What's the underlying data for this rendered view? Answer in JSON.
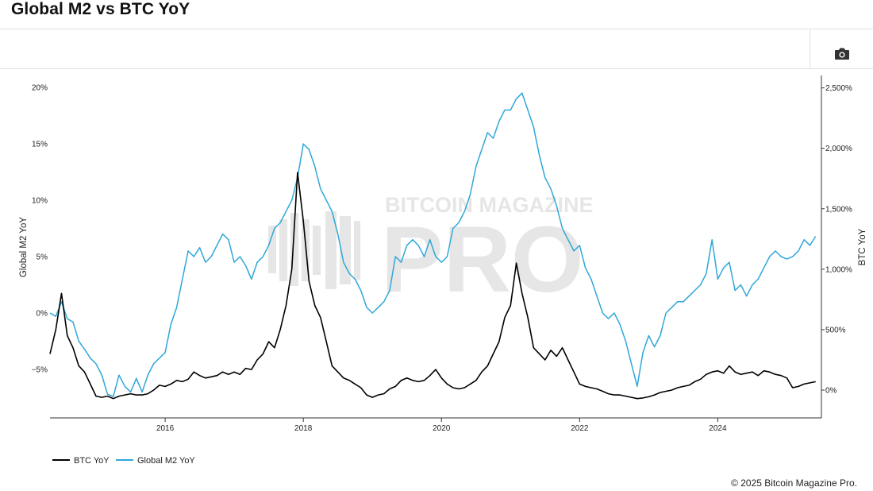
{
  "title": "Global M2 vs BTC YoY",
  "credit": "© 2025 Bitcoin Magazine Pro.",
  "watermark": {
    "line1": "BITCOIN MAGAZINE",
    "line2": "PRO"
  },
  "toolbar": {
    "camera_icon": "camera-icon"
  },
  "colors": {
    "btc": "#000000",
    "m2": "#2fa7d9",
    "axis": "#333333",
    "watermark": "#e4e4e4"
  },
  "chart_data": {
    "type": "line",
    "x_axis": {
      "ticks": [
        "2016",
        "2018",
        "2020",
        "2022",
        "2024"
      ],
      "range": [
        "2014-05",
        "2025-07"
      ]
    },
    "y_left": {
      "label": "Global M2 YoY",
      "ticks": [
        "20%",
        "15%",
        "10%",
        "5%",
        "0%",
        "−5%"
      ],
      "range": [
        -9.3,
        20.5
      ]
    },
    "y_right": {
      "label": "BTC YoY",
      "ticks": [
        "2,500%",
        "2,000%",
        "1,500%",
        "1,000%",
        "500%",
        "0%"
      ],
      "range": [
        -230,
        2550
      ]
    },
    "legend": {
      "position": "bottom-left",
      "items": [
        "BTC YoY",
        "Global M2 YoY"
      ]
    },
    "series": [
      {
        "name": "Global M2 YoY",
        "axis": "left",
        "points": [
          [
            "2014-05",
            0.0
          ],
          [
            "2014-06",
            -0.3
          ],
          [
            "2014-07",
            1.0
          ],
          [
            "2014-08",
            -0.5
          ],
          [
            "2014-09",
            -0.8
          ],
          [
            "2014-10",
            -2.5
          ],
          [
            "2014-11",
            -3.2
          ],
          [
            "2014-12",
            -4.0
          ],
          [
            "2015-01",
            -4.5
          ],
          [
            "2015-02",
            -5.5
          ],
          [
            "2015-03",
            -7.2
          ],
          [
            "2015-04",
            -7.4
          ],
          [
            "2015-05",
            -5.5
          ],
          [
            "2015-06",
            -6.5
          ],
          [
            "2015-07",
            -7.0
          ],
          [
            "2015-08",
            -5.8
          ],
          [
            "2015-09",
            -7.0
          ],
          [
            "2015-10",
            -5.5
          ],
          [
            "2015-11",
            -4.5
          ],
          [
            "2015-12",
            -4.0
          ],
          [
            "2016-01",
            -3.5
          ],
          [
            "2016-02",
            -1.0
          ],
          [
            "2016-03",
            0.5
          ],
          [
            "2016-04",
            3.0
          ],
          [
            "2016-05",
            5.5
          ],
          [
            "2016-06",
            5.0
          ],
          [
            "2016-07",
            5.8
          ],
          [
            "2016-08",
            4.5
          ],
          [
            "2016-09",
            5.0
          ],
          [
            "2016-10",
            6.0
          ],
          [
            "2016-11",
            7.0
          ],
          [
            "2016-12",
            6.5
          ],
          [
            "2017-01",
            4.5
          ],
          [
            "2017-02",
            5.0
          ],
          [
            "2017-03",
            4.2
          ],
          [
            "2017-04",
            3.0
          ],
          [
            "2017-05",
            4.5
          ],
          [
            "2017-06",
            5.0
          ],
          [
            "2017-07",
            6.0
          ],
          [
            "2017-08",
            7.5
          ],
          [
            "2017-09",
            8.0
          ],
          [
            "2017-10",
            9.0
          ],
          [
            "2017-11",
            10.0
          ],
          [
            "2017-12",
            12.0
          ],
          [
            "2018-01",
            15.0
          ],
          [
            "2018-02",
            14.5
          ],
          [
            "2018-03",
            13.0
          ],
          [
            "2018-04",
            11.0
          ],
          [
            "2018-05",
            10.0
          ],
          [
            "2018-06",
            9.0
          ],
          [
            "2018-07",
            7.0
          ],
          [
            "2018-08",
            4.5
          ],
          [
            "2018-09",
            3.5
          ],
          [
            "2018-10",
            3.0
          ],
          [
            "2018-11",
            2.0
          ],
          [
            "2018-12",
            0.5
          ],
          [
            "2019-01",
            0.0
          ],
          [
            "2019-02",
            0.5
          ],
          [
            "2019-03",
            1.0
          ],
          [
            "2019-04",
            2.0
          ],
          [
            "2019-05",
            5.0
          ],
          [
            "2019-06",
            4.5
          ],
          [
            "2019-07",
            6.0
          ],
          [
            "2019-08",
            6.5
          ],
          [
            "2019-09",
            6.0
          ],
          [
            "2019-10",
            5.0
          ],
          [
            "2019-11",
            6.5
          ],
          [
            "2019-12",
            5.0
          ],
          [
            "2020-01",
            4.5
          ],
          [
            "2020-02",
            5.0
          ],
          [
            "2020-03",
            7.5
          ],
          [
            "2020-04",
            8.0
          ],
          [
            "2020-05",
            9.0
          ],
          [
            "2020-06",
            10.5
          ],
          [
            "2020-07",
            13.0
          ],
          [
            "2020-08",
            14.5
          ],
          [
            "2020-09",
            16.0
          ],
          [
            "2020-10",
            15.5
          ],
          [
            "2020-11",
            17.0
          ],
          [
            "2020-12",
            18.0
          ],
          [
            "2021-01",
            18.0
          ],
          [
            "2021-02",
            19.0
          ],
          [
            "2021-03",
            19.5
          ],
          [
            "2021-04",
            18.0
          ],
          [
            "2021-05",
            16.5
          ],
          [
            "2021-06",
            14.0
          ],
          [
            "2021-07",
            12.0
          ],
          [
            "2021-08",
            11.0
          ],
          [
            "2021-09",
            9.5
          ],
          [
            "2021-10",
            7.5
          ],
          [
            "2021-11",
            6.5
          ],
          [
            "2021-12",
            5.5
          ],
          [
            "2022-01",
            6.0
          ],
          [
            "2022-02",
            4.0
          ],
          [
            "2022-03",
            3.0
          ],
          [
            "2022-04",
            1.5
          ],
          [
            "2022-05",
            0.0
          ],
          [
            "2022-06",
            -0.5
          ],
          [
            "2022-07",
            0.0
          ],
          [
            "2022-08",
            -1.0
          ],
          [
            "2022-09",
            -2.5
          ],
          [
            "2022-10",
            -4.5
          ],
          [
            "2022-11",
            -6.5
          ],
          [
            "2022-12",
            -3.5
          ],
          [
            "2023-01",
            -2.0
          ],
          [
            "2023-02",
            -3.0
          ],
          [
            "2023-03",
            -2.0
          ],
          [
            "2023-04",
            0.0
          ],
          [
            "2023-05",
            0.5
          ],
          [
            "2023-06",
            1.0
          ],
          [
            "2023-07",
            1.0
          ],
          [
            "2023-08",
            1.5
          ],
          [
            "2023-09",
            2.0
          ],
          [
            "2023-10",
            2.5
          ],
          [
            "2023-11",
            3.5
          ],
          [
            "2023-12",
            6.5
          ],
          [
            "2024-01",
            3.0
          ],
          [
            "2024-02",
            4.0
          ],
          [
            "2024-03",
            4.5
          ],
          [
            "2024-04",
            2.0
          ],
          [
            "2024-05",
            2.5
          ],
          [
            "2024-06",
            1.5
          ],
          [
            "2024-07",
            2.5
          ],
          [
            "2024-08",
            3.0
          ],
          [
            "2024-09",
            4.0
          ],
          [
            "2024-10",
            5.0
          ],
          [
            "2024-11",
            5.5
          ],
          [
            "2024-12",
            5.0
          ],
          [
            "2025-01",
            4.8
          ],
          [
            "2025-02",
            5.0
          ],
          [
            "2025-03",
            5.5
          ],
          [
            "2025-04",
            6.5
          ],
          [
            "2025-05",
            6.0
          ],
          [
            "2025-06",
            6.8
          ]
        ]
      },
      {
        "name": "BTC YoY",
        "axis": "right",
        "points": [
          [
            "2014-05",
            300
          ],
          [
            "2014-06",
            500
          ],
          [
            "2014-07",
            800
          ],
          [
            "2014-08",
            450
          ],
          [
            "2014-09",
            350
          ],
          [
            "2014-10",
            200
          ],
          [
            "2014-11",
            150
          ],
          [
            "2014-12",
            50
          ],
          [
            "2015-01",
            -50
          ],
          [
            "2015-02",
            -60
          ],
          [
            "2015-03",
            -50
          ],
          [
            "2015-04",
            -70
          ],
          [
            "2015-05",
            -50
          ],
          [
            "2015-06",
            -40
          ],
          [
            "2015-07",
            -30
          ],
          [
            "2015-08",
            -40
          ],
          [
            "2015-09",
            -40
          ],
          [
            "2015-10",
            -30
          ],
          [
            "2015-11",
            0
          ],
          [
            "2015-12",
            40
          ],
          [
            "2016-01",
            30
          ],
          [
            "2016-02",
            50
          ],
          [
            "2016-03",
            80
          ],
          [
            "2016-04",
            70
          ],
          [
            "2016-05",
            90
          ],
          [
            "2016-06",
            150
          ],
          [
            "2016-07",
            120
          ],
          [
            "2016-08",
            100
          ],
          [
            "2016-09",
            110
          ],
          [
            "2016-10",
            120
          ],
          [
            "2016-11",
            150
          ],
          [
            "2016-12",
            130
          ],
          [
            "2017-01",
            150
          ],
          [
            "2017-02",
            130
          ],
          [
            "2017-03",
            180
          ],
          [
            "2017-04",
            170
          ],
          [
            "2017-05",
            250
          ],
          [
            "2017-06",
            300
          ],
          [
            "2017-07",
            400
          ],
          [
            "2017-08",
            350
          ],
          [
            "2017-09",
            500
          ],
          [
            "2017-10",
            700
          ],
          [
            "2017-11",
            1000
          ],
          [
            "2017-12",
            1800
          ],
          [
            "2018-01",
            1400
          ],
          [
            "2018-02",
            900
          ],
          [
            "2018-03",
            700
          ],
          [
            "2018-04",
            600
          ],
          [
            "2018-05",
            400
          ],
          [
            "2018-06",
            200
          ],
          [
            "2018-07",
            150
          ],
          [
            "2018-08",
            100
          ],
          [
            "2018-09",
            80
          ],
          [
            "2018-10",
            50
          ],
          [
            "2018-11",
            20
          ],
          [
            "2018-12",
            -40
          ],
          [
            "2019-01",
            -60
          ],
          [
            "2019-02",
            -40
          ],
          [
            "2019-03",
            -30
          ],
          [
            "2019-04",
            10
          ],
          [
            "2019-05",
            30
          ],
          [
            "2019-06",
            80
          ],
          [
            "2019-07",
            100
          ],
          [
            "2019-08",
            80
          ],
          [
            "2019-09",
            70
          ],
          [
            "2019-10",
            80
          ],
          [
            "2019-11",
            120
          ],
          [
            "2019-12",
            170
          ],
          [
            "2020-01",
            100
          ],
          [
            "2020-02",
            50
          ],
          [
            "2020-03",
            20
          ],
          [
            "2020-04",
            10
          ],
          [
            "2020-05",
            20
          ],
          [
            "2020-06",
            50
          ],
          [
            "2020-07",
            80
          ],
          [
            "2020-08",
            150
          ],
          [
            "2020-09",
            200
          ],
          [
            "2020-10",
            300
          ],
          [
            "2020-11",
            400
          ],
          [
            "2020-12",
            600
          ],
          [
            "2021-01",
            700
          ],
          [
            "2021-02",
            1050
          ],
          [
            "2021-03",
            800
          ],
          [
            "2021-04",
            600
          ],
          [
            "2021-05",
            350
          ],
          [
            "2021-06",
            300
          ],
          [
            "2021-07",
            250
          ],
          [
            "2021-08",
            330
          ],
          [
            "2021-09",
            280
          ],
          [
            "2021-10",
            350
          ],
          [
            "2021-11",
            250
          ],
          [
            "2021-12",
            150
          ],
          [
            "2022-01",
            50
          ],
          [
            "2022-02",
            30
          ],
          [
            "2022-03",
            20
          ],
          [
            "2022-04",
            10
          ],
          [
            "2022-05",
            -10
          ],
          [
            "2022-06",
            -30
          ],
          [
            "2022-07",
            -40
          ],
          [
            "2022-08",
            -40
          ],
          [
            "2022-09",
            -50
          ],
          [
            "2022-10",
            -60
          ],
          [
            "2022-11",
            -70
          ],
          [
            "2022-12",
            -65
          ],
          [
            "2023-01",
            -55
          ],
          [
            "2023-02",
            -40
          ],
          [
            "2023-03",
            -20
          ],
          [
            "2023-04",
            -10
          ],
          [
            "2023-05",
            0
          ],
          [
            "2023-06",
            20
          ],
          [
            "2023-07",
            30
          ],
          [
            "2023-08",
            40
          ],
          [
            "2023-09",
            70
          ],
          [
            "2023-10",
            90
          ],
          [
            "2023-11",
            130
          ],
          [
            "2023-12",
            150
          ],
          [
            "2024-01",
            160
          ],
          [
            "2024-02",
            140
          ],
          [
            "2024-03",
            200
          ],
          [
            "2024-04",
            150
          ],
          [
            "2024-05",
            130
          ],
          [
            "2024-06",
            140
          ],
          [
            "2024-07",
            150
          ],
          [
            "2024-08",
            120
          ],
          [
            "2024-09",
            160
          ],
          [
            "2024-10",
            150
          ],
          [
            "2024-11",
            130
          ],
          [
            "2024-12",
            120
          ],
          [
            "2025-01",
            100
          ],
          [
            "2025-02",
            20
          ],
          [
            "2025-03",
            30
          ],
          [
            "2025-04",
            50
          ],
          [
            "2025-05",
            60
          ],
          [
            "2025-06",
            70
          ]
        ]
      }
    ]
  }
}
